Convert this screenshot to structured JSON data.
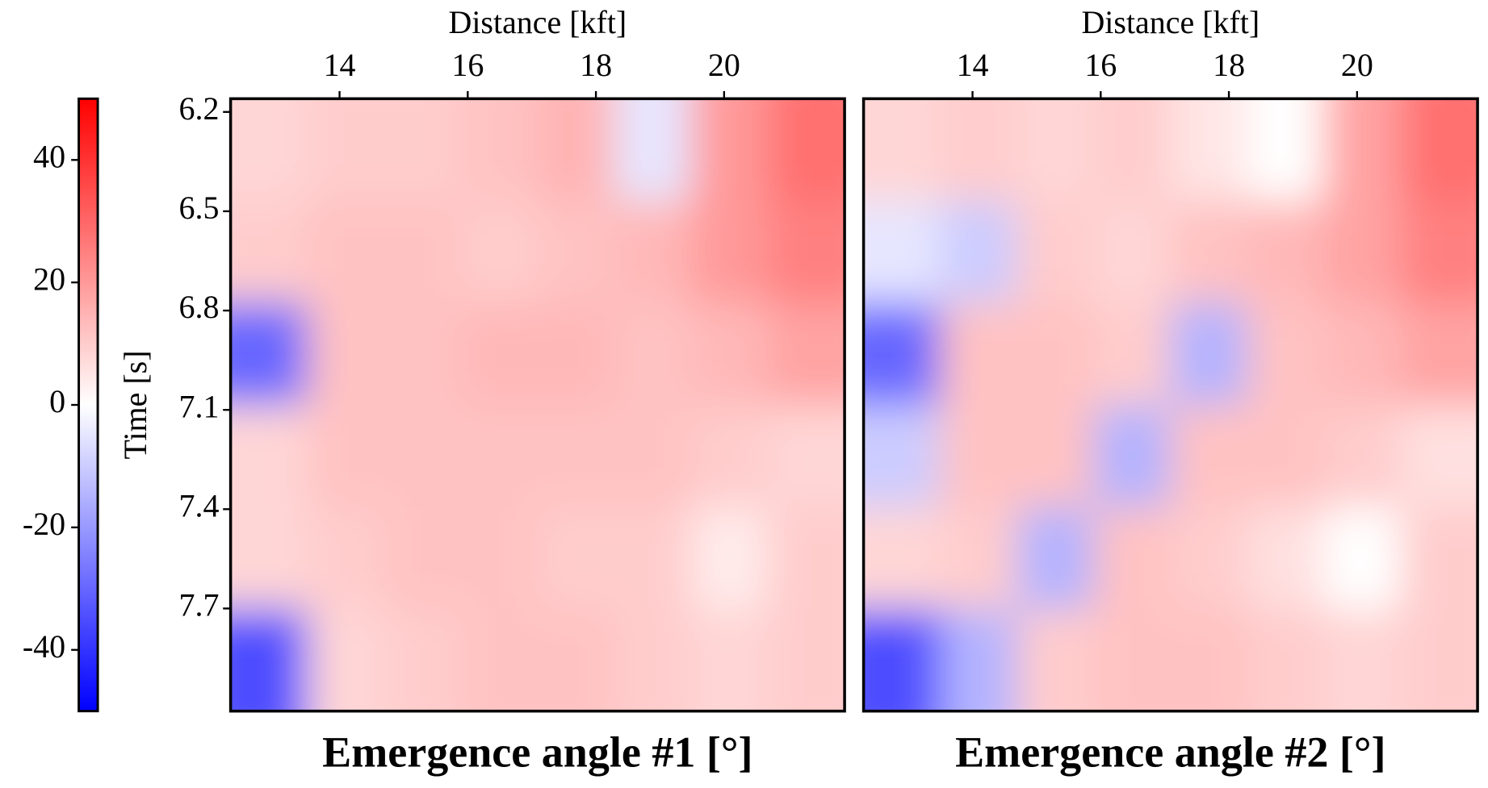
{
  "colorbar": {
    "clim": [
      -50,
      50
    ],
    "ticks": [
      40,
      20,
      0,
      -20,
      -40
    ],
    "colors": [
      "#0000ff",
      "#ffffff",
      "#ff0000"
    ]
  },
  "chart_data": [
    {
      "type": "heatmap",
      "title": "Emergence angle #1 [°]",
      "x_label": "Distance [kft]",
      "y_label": "Time [s]",
      "xlim": [
        12.3,
        21.88
      ],
      "xticks": [
        14,
        16,
        18,
        20
      ],
      "ylim": [
        6.16,
        8.01
      ],
      "yticks": [
        6.2,
        6.5,
        6.8,
        7.1,
        7.4,
        7.7
      ],
      "values": [
        [
          8,
          10,
          10,
          12,
          15,
          -5,
          20,
          28
        ],
        [
          10,
          12,
          12,
          10,
          12,
          14,
          20,
          25
        ],
        [
          -30,
          12,
          12,
          14,
          14,
          12,
          14,
          18
        ],
        [
          8,
          12,
          12,
          12,
          12,
          12,
          10,
          8
        ],
        [
          8,
          10,
          12,
          12,
          10,
          10,
          4,
          10
        ],
        [
          -35,
          8,
          10,
          12,
          12,
          10,
          8,
          10
        ]
      ]
    },
    {
      "type": "heatmap",
      "title": "Emergence angle #2 [°]",
      "x_label": "Distance [kft]",
      "xlim": [
        12.3,
        21.88
      ],
      "xticks": [
        14,
        16,
        18,
        20
      ],
      "ylim": [
        6.16,
        8.01
      ],
      "values": [
        [
          8,
          10,
          8,
          10,
          5,
          0,
          18,
          28
        ],
        [
          -5,
          -10,
          10,
          8,
          12,
          14,
          18,
          25
        ],
        [
          -30,
          12,
          12,
          10,
          -15,
          12,
          14,
          18
        ],
        [
          -10,
          12,
          12,
          -15,
          12,
          12,
          10,
          6
        ],
        [
          8,
          10,
          -15,
          12,
          10,
          6,
          0,
          10
        ],
        [
          -35,
          -15,
          10,
          12,
          12,
          10,
          8,
          10
        ]
      ]
    }
  ]
}
